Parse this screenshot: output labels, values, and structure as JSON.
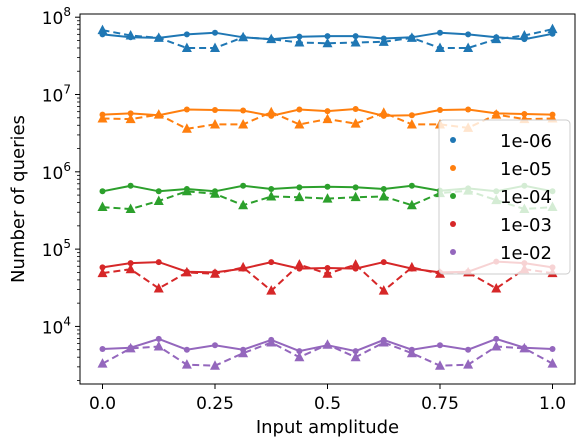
{
  "chart_data": {
    "type": "line",
    "xlabel": "Input amplitude",
    "ylabel": "Number of queries",
    "y_scale": "log",
    "xlim": [
      -0.05,
      1.05
    ],
    "ylim": [
      1800,
      110000000
    ],
    "x_ticks": [
      {
        "value": 0.0,
        "label": "0.0"
      },
      {
        "value": 0.25,
        "label": "0.25"
      },
      {
        "value": 0.5,
        "label": "0.5"
      },
      {
        "value": 0.75,
        "label": "0.75"
      },
      {
        "value": 1.0,
        "label": "1.0"
      }
    ],
    "y_ticks": [
      {
        "value": 10000,
        "base": "10",
        "exp": "4"
      },
      {
        "value": 100000,
        "base": "10",
        "exp": "5"
      },
      {
        "value": 1000000,
        "base": "10",
        "exp": "6"
      },
      {
        "value": 10000000,
        "base": "10",
        "exp": "7"
      },
      {
        "value": 100000000,
        "base": "10",
        "exp": "8"
      }
    ],
    "grid": false,
    "legend_position": "right",
    "x": [
      0.0,
      0.0625,
      0.125,
      0.1875,
      0.25,
      0.3125,
      0.375,
      0.4375,
      0.5,
      0.5625,
      0.625,
      0.6875,
      0.75,
      0.8125,
      0.875,
      0.9375,
      1.0
    ],
    "series": [
      {
        "name": "1e-06",
        "color": "#1f77b4",
        "solid": [
          60000000,
          55000000,
          54000000,
          60000000,
          63000000,
          55000000,
          52000000,
          56000000,
          57000000,
          57000000,
          53000000,
          55000000,
          63000000,
          60000000,
          55000000,
          52000000,
          61000000
        ],
        "dashed": [
          68000000,
          58000000,
          54000000,
          40000000,
          40000000,
          55000000,
          52000000,
          47000000,
          46000000,
          47000000,
          48000000,
          54000000,
          40000000,
          40000000,
          52000000,
          58000000,
          70000000
        ]
      },
      {
        "name": "1e-05",
        "color": "#ff7f0e",
        "solid": [
          5500000,
          5700000,
          5400000,
          6400000,
          6300000,
          6200000,
          5300000,
          6400000,
          6100000,
          6500000,
          5300000,
          5400000,
          6300000,
          6400000,
          5700000,
          5600000,
          5500000
        ],
        "dashed": [
          4900000,
          4800000,
          5500000,
          3600000,
          4100000,
          4100000,
          5900000,
          4100000,
          4800000,
          4200000,
          5800000,
          4100000,
          4100000,
          3700000,
          5500000,
          4800000,
          4900000
        ]
      },
      {
        "name": "1e-04",
        "color": "#2ca02c",
        "solid": [
          560000,
          660000,
          560000,
          600000,
          560000,
          660000,
          600000,
          630000,
          640000,
          630000,
          600000,
          660000,
          570000,
          610000,
          560000,
          660000,
          560000
        ],
        "dashed": [
          350000,
          330000,
          420000,
          560000,
          520000,
          370000,
          480000,
          470000,
          450000,
          470000,
          480000,
          370000,
          530000,
          570000,
          430000,
          330000,
          350000
        ]
      },
      {
        "name": "1e-03",
        "color": "#d62728",
        "solid": [
          58000,
          66000,
          68000,
          51000,
          50000,
          56000,
          68000,
          56000,
          57000,
          56000,
          68000,
          56000,
          50000,
          51000,
          69000,
          66000,
          58000
        ],
        "dashed": [
          49000,
          55000,
          31000,
          50000,
          48000,
          58000,
          29000,
          63000,
          48000,
          63000,
          29000,
          58000,
          48000,
          50000,
          31000,
          55000,
          49000
        ]
      },
      {
        "name": "1e-02",
        "color": "#9467bd",
        "solid": [
          5100,
          5300,
          6900,
          5000,
          5700,
          5000,
          6700,
          4800,
          5700,
          4800,
          6700,
          5000,
          5700,
          5000,
          6900,
          5300,
          5100
        ],
        "dashed": [
          3300,
          5200,
          5500,
          3200,
          3100,
          4500,
          6200,
          4000,
          5800,
          4000,
          6200,
          4500,
          3100,
          3200,
          5500,
          5200,
          3300
        ]
      }
    ]
  }
}
